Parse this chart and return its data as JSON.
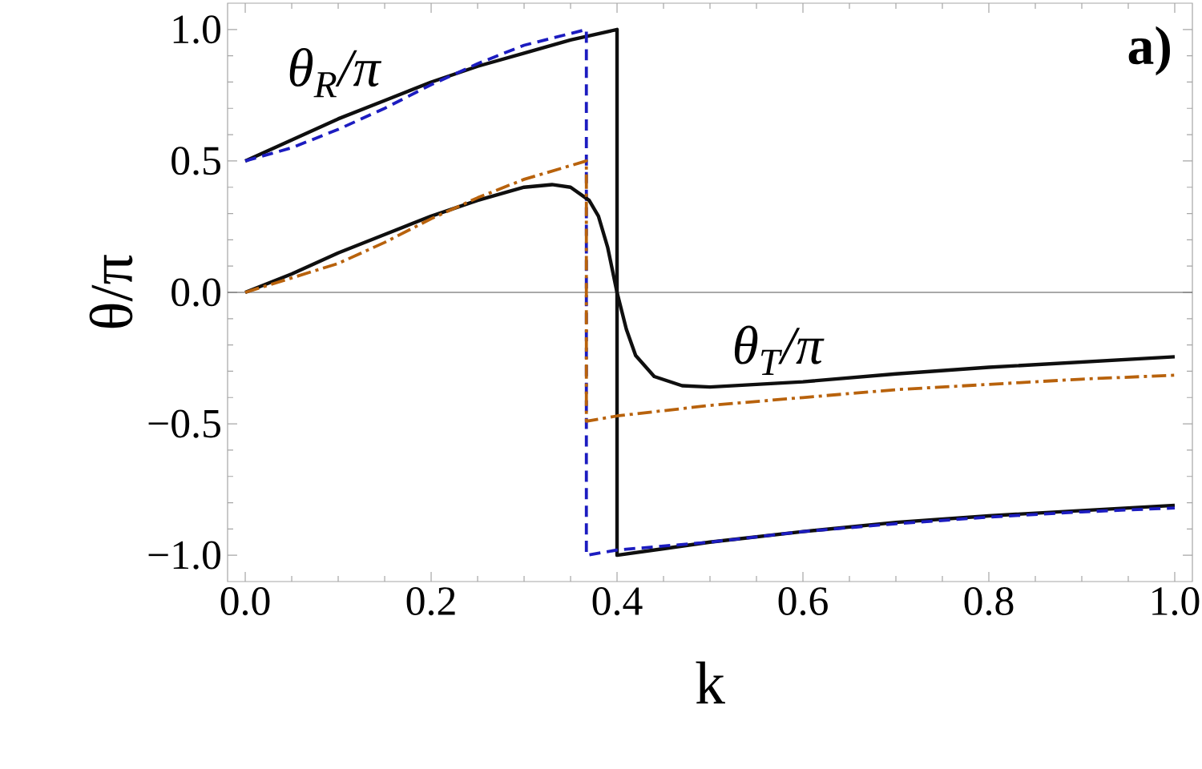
{
  "chart_data": {
    "type": "line",
    "xlabel": "k",
    "ylabel": "θ/π",
    "xlim": [
      -0.019,
      1.019
    ],
    "ylim": [
      -1.1,
      1.1
    ],
    "xticks": [
      {
        "value": 0,
        "label": "0.0"
      },
      {
        "value": 0.2,
        "label": "0.2"
      },
      {
        "value": 0.4,
        "label": "0.4"
      },
      {
        "value": 0.6,
        "label": "0.6"
      },
      {
        "value": 0.8,
        "label": "0.8"
      },
      {
        "value": 1,
        "label": "1.0"
      }
    ],
    "yticks": [
      {
        "value": -1,
        "label": "−1.0"
      },
      {
        "value": -0.5,
        "label": "−0.5"
      },
      {
        "value": 0,
        "label": "0.0"
      },
      {
        "value": 0.5,
        "label": "0.5"
      },
      {
        "value": 1,
        "label": "1.0"
      }
    ],
    "grid": false,
    "ref_lines": [
      {
        "axis": "y",
        "value": 0,
        "color": "#555555",
        "line_style": "solid"
      }
    ],
    "series": [
      {
        "color": "#0f0f0f",
        "line_style": "solid",
        "x": [
          0,
          0.05,
          0.1,
          0.15,
          0.2,
          0.25,
          0.3,
          0.35,
          0.4,
          0.4,
          0.45,
          0.5,
          0.6,
          0.7,
          0.8,
          0.9,
          1.0
        ],
        "values": [
          0.5,
          0.58,
          0.66,
          0.73,
          0.8,
          0.86,
          0.91,
          0.96,
          1.0,
          -1.0,
          -0.975,
          -0.95,
          -0.91,
          -0.875,
          -0.85,
          -0.83,
          -0.81
        ]
      },
      {
        "color": "#1c1cc0",
        "line_style": "dashed",
        "x": [
          0,
          0.05,
          0.1,
          0.15,
          0.2,
          0.25,
          0.3,
          0.367,
          0.367,
          0.4,
          0.5,
          0.6,
          0.7,
          0.8,
          0.9,
          1.0
        ],
        "values": [
          0.5,
          0.55,
          0.62,
          0.7,
          0.79,
          0.87,
          0.94,
          1.0,
          -1.0,
          -0.98,
          -0.95,
          -0.91,
          -0.88,
          -0.855,
          -0.835,
          -0.82
        ]
      },
      {
        "color": "#0f0f0f",
        "line_style": "solid",
        "x": [
          0,
          0.05,
          0.1,
          0.15,
          0.2,
          0.25,
          0.3,
          0.33,
          0.35,
          0.37,
          0.38,
          0.39,
          0.4,
          0.41,
          0.42,
          0.44,
          0.47,
          0.5,
          0.6,
          0.7,
          0.8,
          0.9,
          1.0
        ],
        "values": [
          0,
          0.07,
          0.15,
          0.22,
          0.29,
          0.35,
          0.4,
          0.41,
          0.4,
          0.35,
          0.29,
          0.17,
          0,
          -0.14,
          -0.24,
          -0.32,
          -0.355,
          -0.36,
          -0.34,
          -0.31,
          -0.285,
          -0.265,
          -0.245
        ]
      },
      {
        "color": "#b8620c",
        "line_style": "dashdotted",
        "x": [
          0,
          0.1,
          0.15,
          0.2,
          0.25,
          0.3,
          0.367,
          0.367,
          0.4,
          0.5,
          0.6,
          0.7,
          0.8,
          0.9,
          1.0
        ],
        "values": [
          0,
          0.11,
          0.19,
          0.28,
          0.36,
          0.43,
          0.5,
          -0.49,
          -0.47,
          -0.43,
          -0.4,
          -0.37,
          -0.35,
          -0.33,
          -0.315
        ]
      }
    ],
    "annotations": [
      "θ$_{R}$/π",
      "θ$_{T}$/π",
      "**a)**"
    ]
  }
}
